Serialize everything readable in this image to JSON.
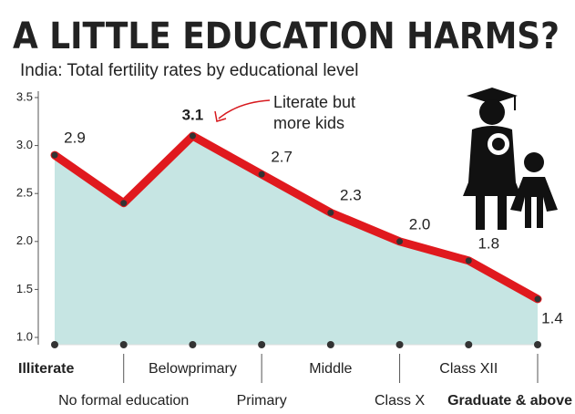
{
  "chart_data": {
    "type": "area-line",
    "title": "A LITTLE EDUCATION HARMS?",
    "subtitle": "India: Total fertility rates by educational level",
    "annotation": [
      "Literate but",
      "more kids"
    ],
    "categories": [
      "Illiterate",
      "No formal education",
      "Belowprimary",
      "Primary",
      "Middle",
      "Class X",
      "Class XII",
      "Graduate & above"
    ],
    "values": [
      2.9,
      2.4,
      3.1,
      2.7,
      2.3,
      2.0,
      1.8,
      1.4
    ],
    "value_labels": [
      "2.9",
      null,
      "3.1",
      "2.7",
      "2.3",
      "2.0",
      "1.8",
      "1.4"
    ],
    "color": "#e0191e",
    "fill": "#c6e5e3",
    "ylim": [
      1.0,
      3.5
    ],
    "yticks": [
      {
        "value": 1.0,
        "label": "1.0"
      },
      1.5,
      {
        "value": 2.0,
        "label": "2.0"
      },
      2.5,
      {
        "value": 3.0,
        "label": "3.0"
      },
      3.5
    ],
    "grid": false
  }
}
